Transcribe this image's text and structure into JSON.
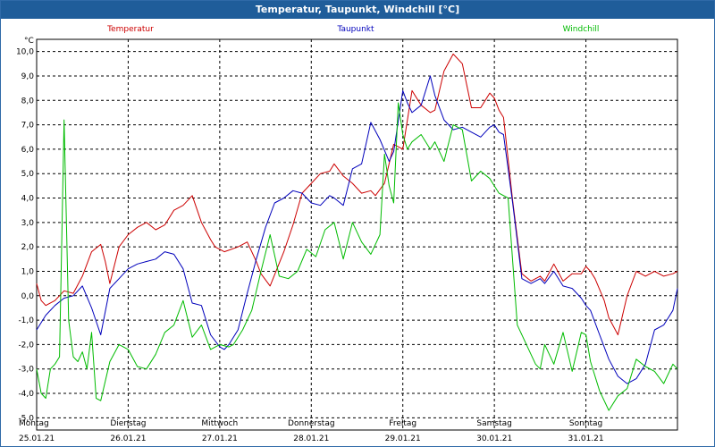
{
  "window": {
    "title": "Temperatur, Taupunkt, Windchill [°C]"
  },
  "chart_data": {
    "type": "line",
    "title": "Temperatur, Taupunkt, Windchill [°C]",
    "ylabel": "°C",
    "ylim": [
      -5.5,
      10.5
    ],
    "yticks": [
      "10,0",
      "9,0",
      "8,0",
      "7,0",
      "6,0",
      "5,0",
      "4,0",
      "3,0",
      "2,0",
      "1,0",
      "0,0",
      "-1,0",
      "-2,0",
      "-3,0",
      "-4,0",
      "-5,0"
    ],
    "xlim": [
      0,
      7
    ],
    "x_days": [
      {
        "day": "Montag",
        "date": "25.01.21"
      },
      {
        "day": "Dienstag",
        "date": "26.01.21"
      },
      {
        "day": "Mittwoch",
        "date": "27.01.21"
      },
      {
        "day": "Donnerstag",
        "date": "28.01.21"
      },
      {
        "day": "Freitag",
        "date": "29.01.21"
      },
      {
        "day": "Samstag",
        "date": "30.01.21"
      },
      {
        "day": "Sonntag",
        "date": "31.01.21"
      }
    ],
    "legend": [
      "Temperatur",
      "Taupunkt",
      "Windchill"
    ],
    "grid": true,
    "series": [
      {
        "name": "Temperatur",
        "color": "#cc0000",
        "x": [
          0,
          0.05,
          0.1,
          0.2,
          0.3,
          0.4,
          0.5,
          0.6,
          0.7,
          0.75,
          0.8,
          0.9,
          1,
          1.1,
          1.2,
          1.3,
          1.4,
          1.5,
          1.6,
          1.7,
          1.8,
          1.9,
          1.95,
          2.05,
          2.2,
          2.3,
          2.4,
          2.45,
          2.55,
          2.7,
          2.8,
          2.9,
          3,
          3.1,
          3.2,
          3.25,
          3.35,
          3.45,
          3.55,
          3.65,
          3.7,
          3.8,
          3.9,
          4,
          4.1,
          4.2,
          4.3,
          4.35,
          4.45,
          4.55,
          4.65,
          4.7,
          4.75,
          4.85,
          4.9,
          4.95,
          5,
          5.05,
          5.1,
          5.2,
          5.3,
          5.4,
          5.5,
          5.55,
          5.65,
          5.75,
          5.85,
          5.95,
          6,
          6.05,
          6.1,
          6.2,
          6.25,
          6.35,
          6.45,
          6.55,
          6.65,
          6.75,
          6.85,
          6.95,
          7
        ],
        "values": [
          0.5,
          -0.2,
          -0.4,
          -0.2,
          0.2,
          0.1,
          0.8,
          1.8,
          2.1,
          1.4,
          0.5,
          2.0,
          2.5,
          2.8,
          3.0,
          2.7,
          2.9,
          3.5,
          3.7,
          4.1,
          3.0,
          2.3,
          2.0,
          1.8,
          2.0,
          2.2,
          1.4,
          0.9,
          0.4,
          1.8,
          2.9,
          4.2,
          4.6,
          5.0,
          5.1,
          5.4,
          4.9,
          4.6,
          4.2,
          4.3,
          4.1,
          4.6,
          6.2,
          6.0,
          8.4,
          7.8,
          7.5,
          7.6,
          9.2,
          9.9,
          9.5,
          8.6,
          7.7,
          7.7,
          8.0,
          8.3,
          8.1,
          7.6,
          7.3,
          3.9,
          0.9,
          0.6,
          0.8,
          0.6,
          1.3,
          0.6,
          0.9,
          0.9,
          1.2,
          1.0,
          0.7,
          -0.2,
          -0.9,
          -1.6,
          0.0,
          1.0,
          0.8,
          1.0,
          0.8,
          0.9,
          1.0
        ]
      },
      {
        "name": "Taupunkt",
        "color": "#0000bb",
        "x": [
          0,
          0.1,
          0.2,
          0.3,
          0.4,
          0.5,
          0.6,
          0.7,
          0.8,
          0.9,
          1,
          1.1,
          1.2,
          1.3,
          1.4,
          1.5,
          1.6,
          1.7,
          1.8,
          1.9,
          2,
          2.05,
          2.1,
          2.2,
          2.3,
          2.4,
          2.5,
          2.6,
          2.7,
          2.8,
          2.9,
          3,
          3.1,
          3.2,
          3.25,
          3.35,
          3.45,
          3.55,
          3.65,
          3.75,
          3.85,
          3.9,
          4,
          4.05,
          4.1,
          4.2,
          4.3,
          4.35,
          4.45,
          4.55,
          4.65,
          4.75,
          4.85,
          4.95,
          5,
          5.05,
          5.1,
          5.2,
          5.3,
          5.4,
          5.5,
          5.55,
          5.65,
          5.75,
          5.85,
          5.95,
          6,
          6.05,
          6.15,
          6.25,
          6.35,
          6.45,
          6.55,
          6.65,
          6.75,
          6.85,
          6.95,
          7
        ],
        "values": [
          -1.4,
          -0.8,
          -0.4,
          -0.1,
          0.0,
          0.4,
          -0.5,
          -1.6,
          0.3,
          0.7,
          1.1,
          1.3,
          1.4,
          1.5,
          1.8,
          1.7,
          1.1,
          -0.3,
          -0.4,
          -1.6,
          -2.1,
          -2.2,
          -2.0,
          -1.4,
          0.1,
          1.5,
          2.8,
          3.8,
          4.0,
          4.3,
          4.2,
          3.8,
          3.7,
          4.1,
          4.0,
          3.7,
          5.2,
          5.4,
          7.1,
          6.4,
          5.5,
          5.9,
          8.4,
          7.9,
          7.5,
          7.8,
          9.0,
          8.2,
          7.2,
          6.8,
          6.9,
          6.7,
          6.5,
          6.9,
          7.0,
          6.7,
          6.6,
          3.8,
          0.7,
          0.5,
          0.7,
          0.5,
          1.0,
          0.4,
          0.3,
          -0.1,
          -0.4,
          -0.6,
          -1.6,
          -2.6,
          -3.3,
          -3.6,
          -3.4,
          -2.8,
          -1.4,
          -1.2,
          -0.6,
          0.3
        ]
      },
      {
        "name": "Windchill",
        "color": "#00bb00",
        "x": [
          0,
          0.05,
          0.1,
          0.15,
          0.2,
          0.25,
          0.3,
          0.35,
          0.4,
          0.45,
          0.5,
          0.55,
          0.6,
          0.65,
          0.7,
          0.8,
          0.9,
          1,
          1.1,
          1.2,
          1.3,
          1.4,
          1.5,
          1.6,
          1.7,
          1.8,
          1.9,
          2,
          2.1,
          2.15,
          2.25,
          2.35,
          2.45,
          2.55,
          2.65,
          2.75,
          2.85,
          2.95,
          3.05,
          3.15,
          3.25,
          3.35,
          3.45,
          3.55,
          3.65,
          3.75,
          3.8,
          3.85,
          3.9,
          3.95,
          4,
          4.05,
          4.1,
          4.2,
          4.3,
          4.35,
          4.45,
          4.55,
          4.65,
          4.75,
          4.85,
          4.95,
          5,
          5.05,
          5.15,
          5.25,
          5.35,
          5.45,
          5.5,
          5.55,
          5.65,
          5.75,
          5.85,
          5.95,
          6,
          6.05,
          6.15,
          6.25,
          6.35,
          6.45,
          6.55,
          6.65,
          6.75,
          6.85,
          6.95,
          7
        ],
        "values": [
          -3.0,
          -4.0,
          -4.2,
          -3.0,
          -2.8,
          -2.5,
          7.2,
          -1.0,
          -2.5,
          -2.7,
          -2.3,
          -3.0,
          -1.5,
          -4.2,
          -4.3,
          -2.7,
          -2.0,
          -2.2,
          -2.9,
          -3.0,
          -2.4,
          -1.5,
          -1.2,
          -0.2,
          -1.7,
          -1.2,
          -2.2,
          -2.0,
          -2.1,
          -2.0,
          -1.4,
          -0.6,
          1.0,
          2.5,
          0.8,
          0.7,
          1.0,
          1.9,
          1.6,
          2.7,
          3.0,
          1.5,
          3.0,
          2.2,
          1.7,
          2.5,
          5.8,
          4.5,
          3.8,
          7.9,
          6.6,
          6.0,
          6.3,
          6.6,
          6.0,
          6.3,
          5.5,
          7.0,
          6.8,
          4.7,
          5.1,
          4.8,
          4.5,
          4.2,
          4.0,
          -1.2,
          -2.0,
          -2.8,
          -3.0,
          -2.0,
          -2.8,
          -1.5,
          -3.1,
          -1.5,
          -1.6,
          -2.7,
          -3.9,
          -4.7,
          -4.1,
          -3.8,
          -2.6,
          -2.9,
          -3.1,
          -3.6,
          -2.8,
          -3.0
        ]
      }
    ]
  }
}
